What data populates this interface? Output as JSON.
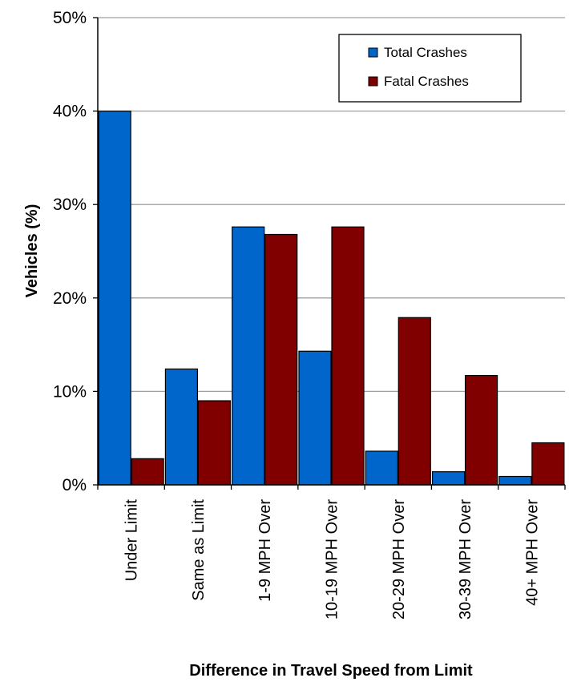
{
  "chart_data": {
    "type": "bar",
    "xlabel": "Difference in Travel Speed from Limit",
    "ylabel": "Vehicles (%)",
    "ylim": [
      0,
      50
    ],
    "yticks": [
      0,
      10,
      20,
      30,
      40,
      50
    ],
    "ytick_labels": [
      "0%",
      "10%",
      "20%",
      "30%",
      "40%",
      "50%"
    ],
    "grid": true,
    "legend_position": "top-right",
    "categories": [
      "Under Limit",
      "Same as Limit",
      "1-9 MPH Over",
      "10-19 MPH Over",
      "20-29 MPH Over",
      "30-39 MPH Over",
      "40+ MPH Over"
    ],
    "series": [
      {
        "name": "Total Crashes",
        "color": "#0066CC",
        "values": [
          40.0,
          12.4,
          27.6,
          14.3,
          3.6,
          1.4,
          0.9
        ]
      },
      {
        "name": "Fatal Crashes",
        "color": "#800000",
        "values": [
          2.8,
          9.0,
          26.8,
          27.6,
          17.9,
          11.7,
          4.5
        ]
      }
    ]
  }
}
